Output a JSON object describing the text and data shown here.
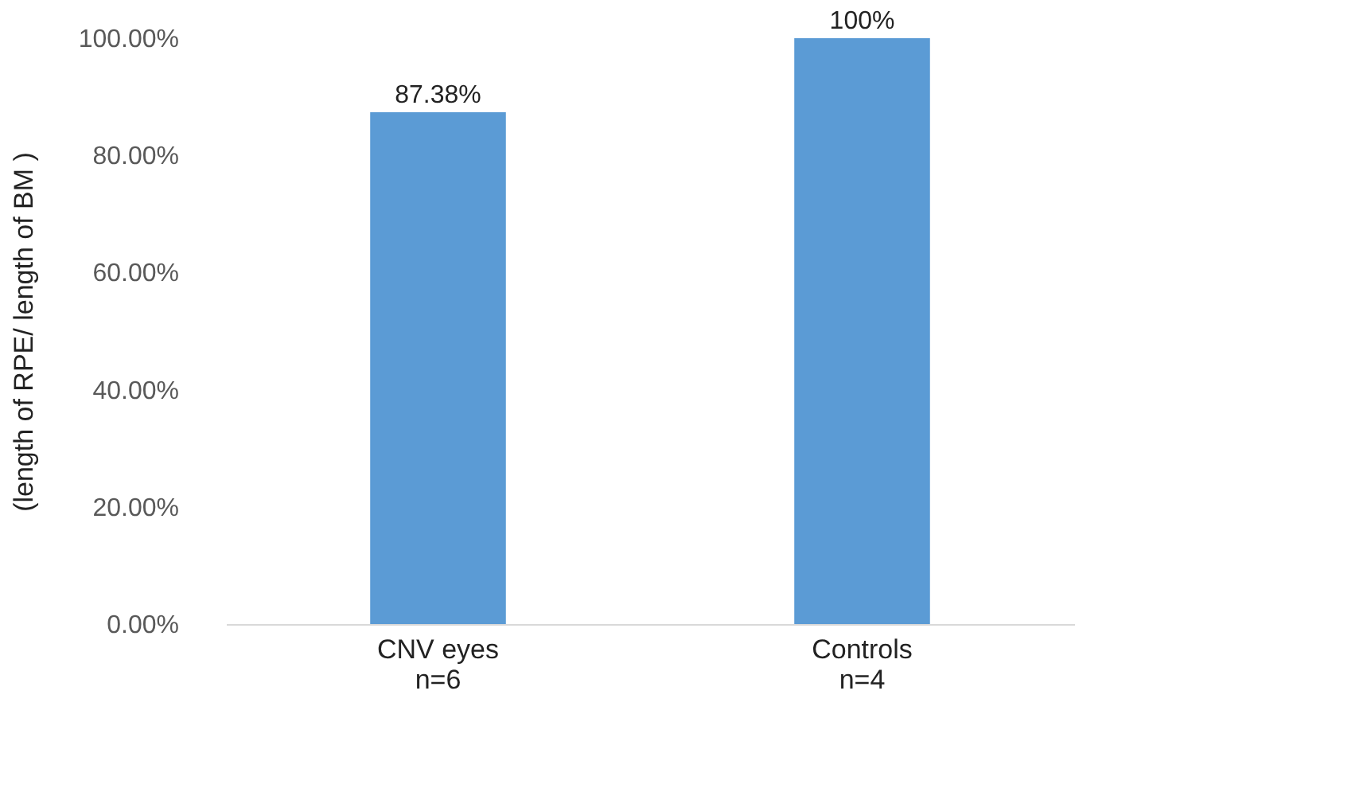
{
  "chart_data": {
    "type": "bar",
    "ylabel": "(length of RPE/ length of BM )",
    "categories": [
      "CNV eyes\nn=6",
      "Controls\nn=4"
    ],
    "values": [
      87.38,
      100
    ],
    "value_labels": [
      "87.38%",
      "100%"
    ],
    "color": "#5b9bd5",
    "ylim": [
      0,
      100
    ],
    "yticks": [
      {
        "value": 0,
        "label": "0.00%"
      },
      {
        "value": 20,
        "label": "20.00%"
      },
      {
        "value": 40,
        "label": "40.00%"
      },
      {
        "value": 60,
        "label": "60.00%"
      },
      {
        "value": 80,
        "label": "80.00%"
      },
      {
        "value": 100,
        "label": "100.00%"
      }
    ],
    "grid": false
  }
}
